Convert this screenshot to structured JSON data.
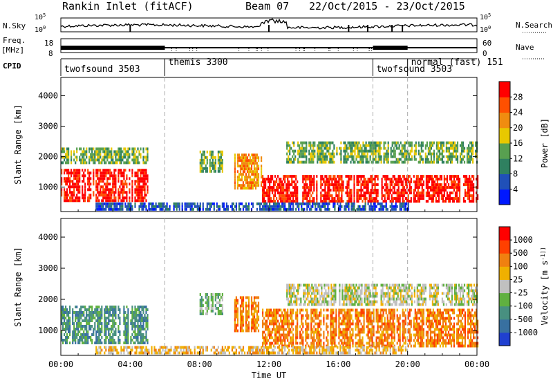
{
  "header": {
    "station": "Rankin Inlet (fitACF)",
    "beam": "Beam 07",
    "dates": "22/Oct/2015 - 23/Oct/2015"
  },
  "top_panels": {
    "nsky_label": "N.Sky",
    "nsky_ticks": [
      "10^5",
      "10^0"
    ],
    "nsearch_label": "N.Search",
    "nsearch_ticks": [
      "10^5",
      "10^0"
    ],
    "freq_label_1": "Freq.",
    "freq_label_2": "[MHz]",
    "freq_ticks": [
      "18",
      "8"
    ],
    "nave_label": "Nave",
    "nave_ticks": [
      "60",
      "0"
    ],
    "cpid_label": "CPID",
    "cpid_segments": [
      {
        "label": "twofsound 3503",
        "start_h": 0
      },
      {
        "label": "themis 3300",
        "start_h": 6
      },
      {
        "label": "twofsound 3503",
        "start_h": 18
      },
      {
        "label": "normal (fast) 151",
        "start_h": 20
      }
    ]
  },
  "chart_data": [
    {
      "type": "heatmap",
      "name": "power",
      "ylabel": "Slant Range [km]",
      "ylim": [
        200,
        4600
      ],
      "yticks": [
        "1000",
        "2000",
        "3000",
        "4000"
      ],
      "colorbar_label": "Power [dB]",
      "colorbar_ticks": [
        "28",
        "24",
        "20",
        "16",
        "12",
        "8",
        "4"
      ],
      "colors": [
        "#0018ff",
        "#2050b8",
        "#2f8060",
        "#58a050",
        "#e8c800",
        "#f08c10",
        "#ff5000",
        "#ff0000"
      ],
      "echo_bands": [
        {
          "x": [
            0,
            5
          ],
          "y": [
            600,
            1600
          ],
          "level": 7
        },
        {
          "x": [
            0,
            5
          ],
          "y": [
            1800,
            2300
          ],
          "level": 3
        },
        {
          "x": [
            8,
            9.3
          ],
          "y": [
            1500,
            2200
          ],
          "level": 3
        },
        {
          "x": [
            10,
            11.6
          ],
          "y": [
            1000,
            2100
          ],
          "level": 5
        },
        {
          "x": [
            11.6,
            24
          ],
          "y": [
            500,
            1400
          ],
          "level": 7
        },
        {
          "x": [
            13,
            24
          ],
          "y": [
            1800,
            2500
          ],
          "level": 3
        },
        {
          "x": [
            2,
            20
          ],
          "y": [
            250,
            500
          ],
          "level": 1
        }
      ]
    },
    {
      "type": "heatmap",
      "name": "velocity",
      "ylabel": "Slant Range [km]",
      "ylim": [
        200,
        4600
      ],
      "yticks": [
        "1000",
        "2000",
        "3000",
        "4000"
      ],
      "xlabel": "Time UT",
      "xticks": [
        "00:00",
        "04:00",
        "08:00",
        "12:00",
        "16:00",
        "20:00",
        "00:00"
      ],
      "colorbar_label": "Velocity [m s^-1]",
      "colorbar_ticks": [
        "1000",
        "500",
        "100",
        "25",
        "-25",
        "-100",
        "-500",
        "-1000"
      ],
      "colors": [
        "#2040d0",
        "#3870a0",
        "#489080",
        "#60b040",
        "#c0c0c0",
        "#f0b000",
        "#f08010",
        "#ff4000",
        "#ff0000"
      ],
      "echo_bands": [
        {
          "x": [
            0,
            5
          ],
          "y": [
            600,
            1800
          ],
          "level": 2
        },
        {
          "x": [
            8,
            9.3
          ],
          "y": [
            1500,
            2200
          ],
          "level": 3
        },
        {
          "x": [
            10,
            11.6
          ],
          "y": [
            1000,
            2100
          ],
          "level": 6
        },
        {
          "x": [
            11.6,
            24
          ],
          "y": [
            500,
            1700
          ],
          "level": 6
        },
        {
          "x": [
            13,
            24
          ],
          "y": [
            1800,
            2500
          ],
          "level": 4
        },
        {
          "x": [
            2,
            20
          ],
          "y": [
            250,
            500
          ],
          "level": 5
        }
      ]
    }
  ]
}
